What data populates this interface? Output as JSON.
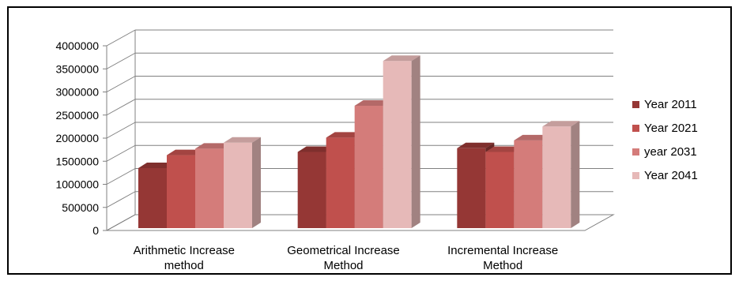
{
  "chart_data": {
    "type": "bar",
    "title": "",
    "xlabel": "",
    "ylabel": "",
    "ylim": [
      0,
      4000000
    ],
    "yticks": [
      0,
      500000,
      1000000,
      1500000,
      2000000,
      2500000,
      3000000,
      3500000,
      4000000
    ],
    "grid": true,
    "legend_position": "right",
    "categories": [
      [
        "Arithmetic Increase",
        "method"
      ],
      [
        "Geometrical Increase",
        "Method"
      ],
      [
        "Incremental Increase",
        "Method"
      ]
    ],
    "series": [
      {
        "name": "Year 2011",
        "color": "#953735",
        "values": [
          1300000,
          1650000,
          1730000
        ]
      },
      {
        "name": "Year 2021",
        "color": "#C0504D",
        "values": [
          1580000,
          1960000,
          1650000
        ]
      },
      {
        "name": "year 2031",
        "color": "#D47C7A",
        "values": [
          1720000,
          2650000,
          1900000
        ]
      },
      {
        "name": "Year 2041",
        "color": "#E6B9B8",
        "values": [
          1850000,
          3620000,
          2200000
        ]
      }
    ]
  }
}
